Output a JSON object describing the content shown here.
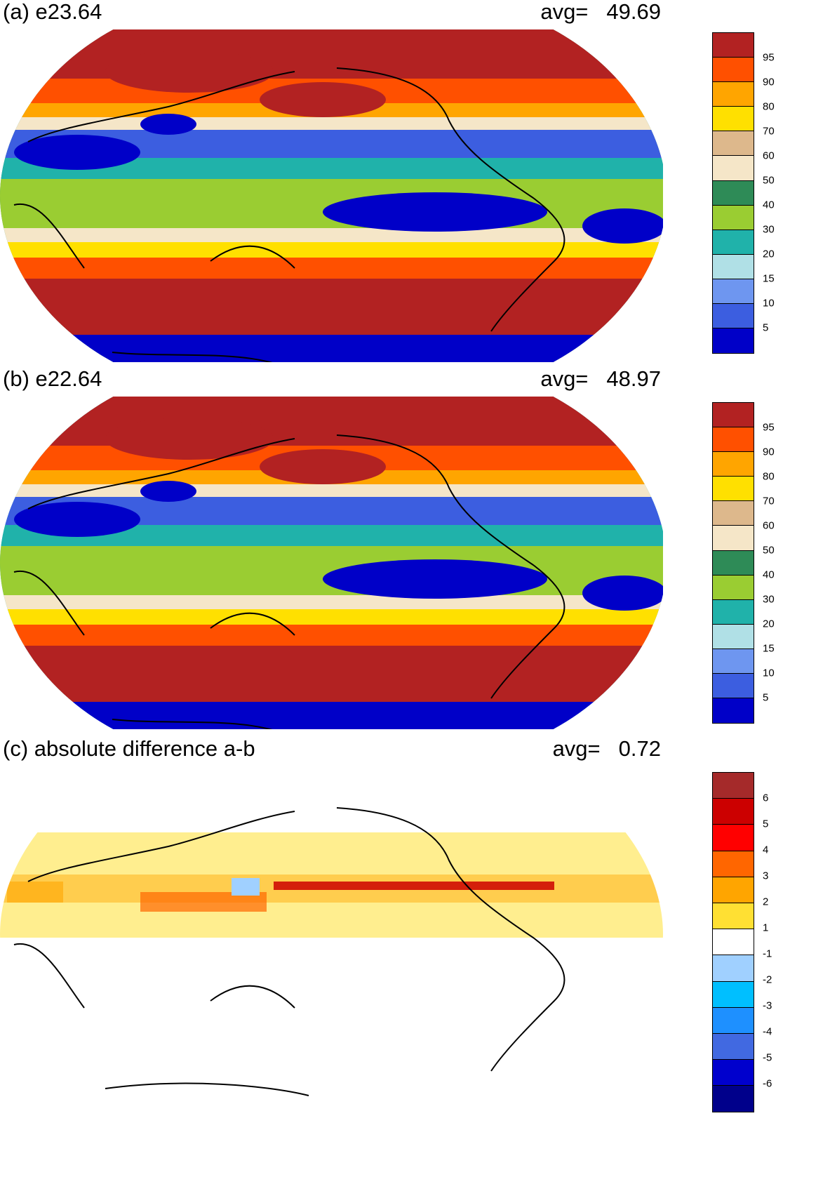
{
  "panels": [
    {
      "id": "a",
      "title": "(a) e23.64",
      "avg_label": "avg=",
      "avg_value": "49.69"
    },
    {
      "id": "b",
      "title": "(b) e22.64",
      "avg_label": "avg=",
      "avg_value": "48.97"
    },
    {
      "id": "c",
      "title": "(c) absolute difference a-b",
      "avg_label": "avg=",
      "avg_value": "0.72"
    }
  ],
  "colorbar_main": {
    "colors": [
      "#0000c8",
      "#3c5ee0",
      "#6e96f0",
      "#b0e0e6",
      "#20b2aa",
      "#9acd32",
      "#2e8b57",
      "#f5e6c8",
      "#ddb88c",
      "#ffe000",
      "#ffa500",
      "#ff5000",
      "#b22222"
    ],
    "ticks": [
      "5",
      "10",
      "15",
      "20",
      "30",
      "40",
      "50",
      "60",
      "70",
      "80",
      "90",
      "95"
    ]
  },
  "colorbar_diff": {
    "colors": [
      "#00008b",
      "#0000cd",
      "#4169e1",
      "#1e90ff",
      "#00bfff",
      "#a0d0ff",
      "#ffffff",
      "#ffe033",
      "#ffa500",
      "#ff6600",
      "#ff0000",
      "#cc0000",
      "#a52a2a"
    ],
    "ticks": [
      "-6",
      "-5",
      "-4",
      "-3",
      "-2",
      "-1",
      "1",
      "2",
      "3",
      "4",
      "5",
      "6"
    ]
  },
  "chart_data": {
    "type": "heatmap",
    "maps": [
      {
        "title": "(a) e23.64",
        "avg": 49.69,
        "levels": [
          5,
          10,
          15,
          20,
          30,
          40,
          50,
          60,
          70,
          80,
          90,
          95
        ]
      },
      {
        "title": "(b) e22.64",
        "avg": 48.97,
        "levels": [
          5,
          10,
          15,
          20,
          30,
          40,
          50,
          60,
          70,
          80,
          90,
          95
        ]
      },
      {
        "title": "(c) absolute difference a-b",
        "avg": 0.72,
        "levels": [
          -6,
          -5,
          -4,
          -3,
          -2,
          -1,
          1,
          2,
          3,
          4,
          5,
          6
        ]
      }
    ],
    "projection": "Robinson",
    "central_longitude": "Pacific-centered"
  }
}
